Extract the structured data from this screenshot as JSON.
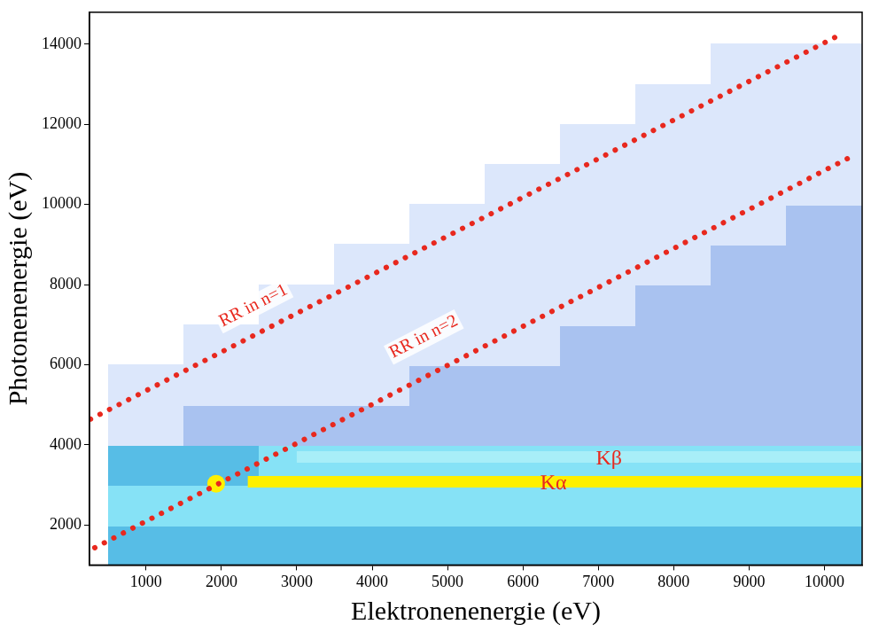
{
  "chart_data": {
    "type": "scatter",
    "x_label": "Elektronenenergie (eV)",
    "y_label": "Photonenenergie (eV)",
    "xlim": [
      250,
      10500
    ],
    "ylim": [
      1000,
      14800
    ],
    "xticks": [
      1000,
      2000,
      3000,
      4000,
      5000,
      6000,
      7000,
      8000,
      9000,
      10000
    ],
    "yticks": [
      2000,
      4000,
      6000,
      8000,
      10000,
      12000,
      14000
    ],
    "grid": false,
    "series": [
      {
        "name": "RR in n=1",
        "type": "line",
        "line_style": "dotted",
        "color": "#e8281e",
        "x": [
          263,
          10245
        ],
        "values": [
          4640,
          14275
        ]
      },
      {
        "name": "RR in n=2",
        "type": "line",
        "line_style": "dotted",
        "color": "#e8281e",
        "x": [
          320,
          10330
        ],
        "values": [
          1430,
          11170
        ]
      },
      {
        "name": "Kα",
        "type": "line",
        "line_style": "solid",
        "marker": "circle",
        "color": "#fff000",
        "x": [
          1930,
          2200,
          2350,
          10500
        ],
        "values": [
          3030,
          null,
          3080,
          3080
        ]
      },
      {
        "name": "Kβ",
        "type": "line",
        "line_style": "solid",
        "color": "#a8eef8",
        "x": [
          3000,
          10500
        ],
        "values": [
          3700,
          3700
        ]
      }
    ],
    "density": {
      "x_bins": [
        500,
        1500,
        2500,
        3500,
        4500,
        5500,
        6500,
        7500,
        8500,
        9500,
        10500
      ],
      "y_bins": [
        1000,
        2000,
        3000,
        4000,
        5000,
        6000,
        7000,
        8000,
        9000,
        10000,
        11000,
        12000,
        13000,
        14000
      ],
      "cells": [
        [
          3,
          3,
          3,
          3,
          3,
          3,
          3,
          3,
          3,
          3
        ],
        [
          4,
          4,
          4,
          4,
          4,
          4,
          4,
          4,
          4,
          4
        ],
        [
          3,
          3,
          4,
          4,
          4,
          4,
          4,
          4,
          4,
          4
        ],
        [
          1,
          2,
          2,
          2,
          2,
          2,
          2,
          2,
          2,
          2
        ],
        [
          1,
          1,
          1,
          1,
          2,
          2,
          2,
          2,
          2,
          2
        ],
        [
          0,
          1,
          1,
          1,
          1,
          1,
          2,
          2,
          2,
          2
        ],
        [
          0,
          0,
          1,
          1,
          1,
          1,
          1,
          2,
          2,
          2
        ],
        [
          0,
          0,
          0,
          1,
          1,
          1,
          1,
          1,
          2,
          2
        ],
        [
          0,
          0,
          0,
          0,
          1,
          1,
          1,
          1,
          1,
          2
        ],
        [
          0,
          0,
          0,
          0,
          0,
          1,
          1,
          1,
          1,
          1
        ],
        [
          0,
          0,
          0,
          0,
          0,
          0,
          1,
          1,
          1,
          1
        ],
        [
          0,
          0,
          0,
          0,
          0,
          0,
          0,
          1,
          1,
          1
        ],
        [
          0,
          0,
          0,
          0,
          0,
          0,
          0,
          0,
          1,
          1
        ]
      ]
    },
    "annotations": [
      {
        "text": "RR in n=1",
        "x": 2425,
        "y": 7470,
        "color": "#e8281e"
      },
      {
        "text": "RR in n=2",
        "x": 4685,
        "y": 6690,
        "color": "#e8281e"
      },
      {
        "text": "Kα",
        "x": 6405,
        "y": 3030,
        "color": "#e8281e"
      },
      {
        "text": "Kβ",
        "x": 7140,
        "y": 3650,
        "color": "#e8281e"
      }
    ]
  }
}
